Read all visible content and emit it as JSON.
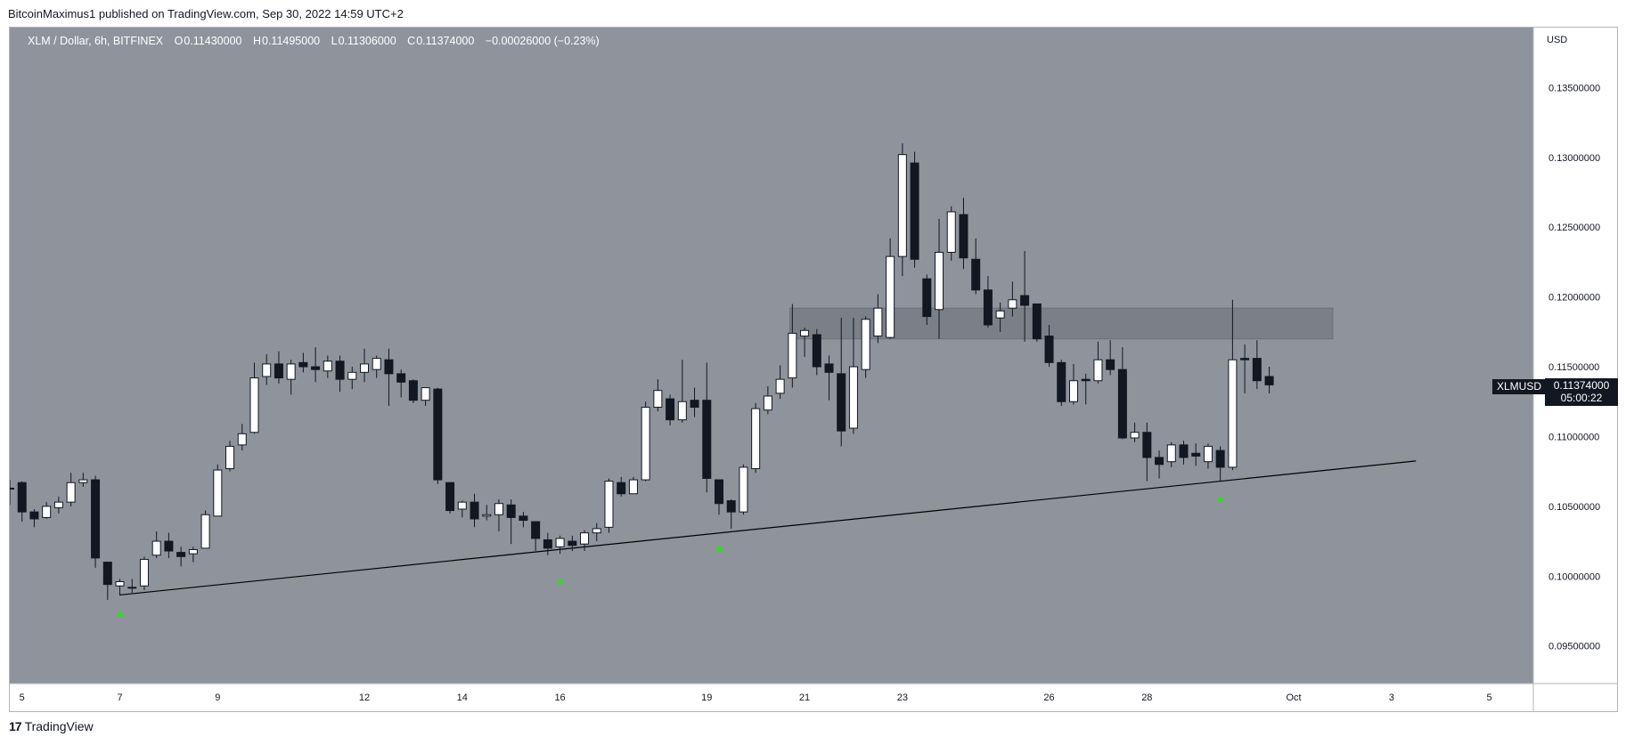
{
  "publisher": "BitcoinMaximus1 published on TradingView.com, Sep 30, 2022 14:59 UTC+2",
  "legend": {
    "symbol": "XLM / Dollar, 6h, BITFINEX",
    "open_label": "O",
    "open": "0.11430000",
    "high_label": "H",
    "high": "0.11495000",
    "low_label": "L",
    "low": "0.11306000",
    "close_label": "C",
    "close": "0.11374000",
    "change": "−0.00026000 (−0.23%)"
  },
  "currency": "USD",
  "symbol_tag": "XLMUSD",
  "last_price": "0.11374000",
  "countdown": "05:00:22",
  "footer": {
    "brand": "TradingView",
    "logo": "17"
  },
  "colors": {
    "background": "#8f939c",
    "up_candle": "#ffffff",
    "down_candle": "#131722",
    "zone": "#7b7f87",
    "marker": "#38d62a"
  },
  "chart_data": {
    "type": "candlestick",
    "title": "XLM / Dollar, 6h, BITFINEX",
    "y_axis": {
      "label": "USD",
      "ticks": [
        "0.13500000",
        "0.13000000",
        "0.12500000",
        "0.12000000",
        "0.11500000",
        "0.11000000",
        "0.10500000",
        "0.10000000",
        "0.09500000"
      ],
      "range": [
        0.0923,
        0.1393
      ]
    },
    "x_axis": {
      "ticks": [
        "5",
        "7",
        "9",
        "12",
        "14",
        "16",
        "19",
        "21",
        "23",
        "26",
        "28",
        "Oct",
        "3",
        "5"
      ],
      "range_days": [
        4.75,
        35.9
      ]
    },
    "candles": [
      {
        "d": 4.75,
        "o": 0.1063,
        "h": 0.1069,
        "l": 0.1051,
        "c": 0.1063
      },
      {
        "d": 5.0,
        "o": 0.1067,
        "h": 0.1068,
        "l": 0.1039,
        "c": 0.1046
      },
      {
        "d": 5.25,
        "o": 0.1046,
        "h": 0.1048,
        "l": 0.1035,
        "c": 0.1041
      },
      {
        "d": 5.5,
        "o": 0.1042,
        "h": 0.1053,
        "l": 0.1041,
        "c": 0.105
      },
      {
        "d": 5.75,
        "o": 0.1049,
        "h": 0.1057,
        "l": 0.1045,
        "c": 0.1053
      },
      {
        "d": 6.0,
        "o": 0.1053,
        "h": 0.1074,
        "l": 0.105,
        "c": 0.1067
      },
      {
        "d": 6.25,
        "o": 0.1067,
        "h": 0.1074,
        "l": 0.1064,
        "c": 0.1069
      },
      {
        "d": 6.5,
        "o": 0.1069,
        "h": 0.1072,
        "l": 0.1006,
        "c": 0.1013
      },
      {
        "d": 6.75,
        "o": 0.101,
        "h": 0.101,
        "l": 0.0983,
        "c": 0.0994
      },
      {
        "d": 7.0,
        "o": 0.0993,
        "h": 0.0998,
        "l": 0.0986,
        "c": 0.0996
      },
      {
        "d": 7.25,
        "o": 0.0992,
        "h": 0.0998,
        "l": 0.0988,
        "c": 0.0992
      },
      {
        "d": 7.5,
        "o": 0.0993,
        "h": 0.1014,
        "l": 0.099,
        "c": 0.1012
      },
      {
        "d": 7.75,
        "o": 0.1015,
        "h": 0.1032,
        "l": 0.1013,
        "c": 0.1025
      },
      {
        "d": 8.0,
        "o": 0.1025,
        "h": 0.1031,
        "l": 0.1013,
        "c": 0.1018
      },
      {
        "d": 8.25,
        "o": 0.1017,
        "h": 0.1021,
        "l": 0.1007,
        "c": 0.1014
      },
      {
        "d": 8.5,
        "o": 0.1016,
        "h": 0.1021,
        "l": 0.101,
        "c": 0.1019
      },
      {
        "d": 8.75,
        "o": 0.102,
        "h": 0.1047,
        "l": 0.102,
        "c": 0.1044
      },
      {
        "d": 9.0,
        "o": 0.1043,
        "h": 0.108,
        "l": 0.1043,
        "c": 0.1076
      },
      {
        "d": 9.25,
        "o": 0.1077,
        "h": 0.1097,
        "l": 0.1075,
        "c": 0.1093
      },
      {
        "d": 9.5,
        "o": 0.1094,
        "h": 0.1109,
        "l": 0.109,
        "c": 0.1102
      },
      {
        "d": 9.75,
        "o": 0.1103,
        "h": 0.1153,
        "l": 0.1102,
        "c": 0.1142
      },
      {
        "d": 10.0,
        "o": 0.1143,
        "h": 0.1159,
        "l": 0.1137,
        "c": 0.1152
      },
      {
        "d": 10.25,
        "o": 0.1152,
        "h": 0.1161,
        "l": 0.1138,
        "c": 0.1142
      },
      {
        "d": 10.5,
        "o": 0.1141,
        "h": 0.1155,
        "l": 0.113,
        "c": 0.1152
      },
      {
        "d": 10.75,
        "o": 0.1153,
        "h": 0.116,
        "l": 0.1146,
        "c": 0.115
      },
      {
        "d": 11.0,
        "o": 0.115,
        "h": 0.1164,
        "l": 0.1139,
        "c": 0.1148
      },
      {
        "d": 11.25,
        "o": 0.1147,
        "h": 0.1158,
        "l": 0.1142,
        "c": 0.1154
      },
      {
        "d": 11.5,
        "o": 0.1154,
        "h": 0.1158,
        "l": 0.1132,
        "c": 0.1141
      },
      {
        "d": 11.75,
        "o": 0.1141,
        "h": 0.115,
        "l": 0.1134,
        "c": 0.1146
      },
      {
        "d": 12.0,
        "o": 0.1146,
        "h": 0.1163,
        "l": 0.1139,
        "c": 0.1152
      },
      {
        "d": 12.25,
        "o": 0.1148,
        "h": 0.1158,
        "l": 0.1142,
        "c": 0.1156
      },
      {
        "d": 12.5,
        "o": 0.1155,
        "h": 0.1163,
        "l": 0.1122,
        "c": 0.1145
      },
      {
        "d": 12.75,
        "o": 0.1145,
        "h": 0.1148,
        "l": 0.1128,
        "c": 0.1139
      },
      {
        "d": 13.0,
        "o": 0.114,
        "h": 0.1141,
        "l": 0.1124,
        "c": 0.1126
      },
      {
        "d": 13.25,
        "o": 0.1126,
        "h": 0.1135,
        "l": 0.1122,
        "c": 0.1135
      },
      {
        "d": 13.5,
        "o": 0.1134,
        "h": 0.1135,
        "l": 0.1066,
        "c": 0.1069
      },
      {
        "d": 13.75,
        "o": 0.1067,
        "h": 0.1067,
        "l": 0.1045,
        "c": 0.1047
      },
      {
        "d": 14.0,
        "o": 0.1048,
        "h": 0.1054,
        "l": 0.1042,
        "c": 0.1053
      },
      {
        "d": 14.25,
        "o": 0.1053,
        "h": 0.1059,
        "l": 0.1035,
        "c": 0.1041
      },
      {
        "d": 14.5,
        "o": 0.1043,
        "h": 0.1051,
        "l": 0.104,
        "c": 0.1044
      },
      {
        "d": 14.75,
        "o": 0.1044,
        "h": 0.1055,
        "l": 0.1032,
        "c": 0.1052
      },
      {
        "d": 15.0,
        "o": 0.1051,
        "h": 0.1055,
        "l": 0.1023,
        "c": 0.1042
      },
      {
        "d": 15.25,
        "o": 0.1043,
        "h": 0.1046,
        "l": 0.1035,
        "c": 0.104
      },
      {
        "d": 15.5,
        "o": 0.1039,
        "h": 0.1039,
        "l": 0.1018,
        "c": 0.1027
      },
      {
        "d": 15.75,
        "o": 0.1026,
        "h": 0.1031,
        "l": 0.1015,
        "c": 0.102
      },
      {
        "d": 16.0,
        "o": 0.1021,
        "h": 0.1029,
        "l": 0.1016,
        "c": 0.1027
      },
      {
        "d": 16.25,
        "o": 0.1025,
        "h": 0.1029,
        "l": 0.1018,
        "c": 0.1022
      },
      {
        "d": 16.5,
        "o": 0.1023,
        "h": 0.1033,
        "l": 0.1018,
        "c": 0.1031
      },
      {
        "d": 16.75,
        "o": 0.1031,
        "h": 0.1038,
        "l": 0.1025,
        "c": 0.1034
      },
      {
        "d": 17.0,
        "o": 0.1035,
        "h": 0.107,
        "l": 0.1031,
        "c": 0.1068
      },
      {
        "d": 17.25,
        "o": 0.1067,
        "h": 0.1071,
        "l": 0.1057,
        "c": 0.1059
      },
      {
        "d": 17.5,
        "o": 0.1059,
        "h": 0.1071,
        "l": 0.1059,
        "c": 0.1069
      },
      {
        "d": 17.75,
        "o": 0.1069,
        "h": 0.1125,
        "l": 0.1068,
        "c": 0.1121
      },
      {
        "d": 18.0,
        "o": 0.1121,
        "h": 0.1141,
        "l": 0.1118,
        "c": 0.1133
      },
      {
        "d": 18.25,
        "o": 0.1127,
        "h": 0.113,
        "l": 0.1108,
        "c": 0.1112
      },
      {
        "d": 18.5,
        "o": 0.1112,
        "h": 0.1155,
        "l": 0.111,
        "c": 0.1125
      },
      {
        "d": 18.75,
        "o": 0.1126,
        "h": 0.1135,
        "l": 0.1114,
        "c": 0.1121
      },
      {
        "d": 19.0,
        "o": 0.1126,
        "h": 0.1153,
        "l": 0.106,
        "c": 0.107
      },
      {
        "d": 19.25,
        "o": 0.1069,
        "h": 0.1069,
        "l": 0.1044,
        "c": 0.1052
      },
      {
        "d": 19.5,
        "o": 0.1054,
        "h": 0.1055,
        "l": 0.1034,
        "c": 0.1046
      },
      {
        "d": 19.75,
        "o": 0.1046,
        "h": 0.108,
        "l": 0.1044,
        "c": 0.1078
      },
      {
        "d": 20.0,
        "o": 0.1077,
        "h": 0.1124,
        "l": 0.1074,
        "c": 0.112
      },
      {
        "d": 20.25,
        "o": 0.1119,
        "h": 0.1136,
        "l": 0.1116,
        "c": 0.1129
      },
      {
        "d": 20.5,
        "o": 0.1131,
        "h": 0.1151,
        "l": 0.1127,
        "c": 0.1141
      },
      {
        "d": 20.75,
        "o": 0.1142,
        "h": 0.1195,
        "l": 0.1135,
        "c": 0.1174
      },
      {
        "d": 21.0,
        "o": 0.1172,
        "h": 0.1178,
        "l": 0.1157,
        "c": 0.1176
      },
      {
        "d": 21.25,
        "o": 0.1173,
        "h": 0.1177,
        "l": 0.1144,
        "c": 0.115
      },
      {
        "d": 21.5,
        "o": 0.1152,
        "h": 0.1158,
        "l": 0.1126,
        "c": 0.1146
      },
      {
        "d": 21.75,
        "o": 0.1145,
        "h": 0.1185,
        "l": 0.1093,
        "c": 0.1104
      },
      {
        "d": 22.0,
        "o": 0.1106,
        "h": 0.1185,
        "l": 0.1102,
        "c": 0.115
      },
      {
        "d": 22.25,
        "o": 0.1148,
        "h": 0.1186,
        "l": 0.1142,
        "c": 0.1184
      },
      {
        "d": 22.5,
        "o": 0.1172,
        "h": 0.1202,
        "l": 0.1167,
        "c": 0.1192
      },
      {
        "d": 22.75,
        "o": 0.1171,
        "h": 0.1242,
        "l": 0.117,
        "c": 0.1229
      },
      {
        "d": 23.0,
        "o": 0.1229,
        "h": 0.131,
        "l": 0.1215,
        "c": 0.1302
      },
      {
        "d": 23.25,
        "o": 0.1296,
        "h": 0.1304,
        "l": 0.1221,
        "c": 0.1227
      },
      {
        "d": 23.5,
        "o": 0.1213,
        "h": 0.1216,
        "l": 0.118,
        "c": 0.1186
      },
      {
        "d": 23.75,
        "o": 0.1191,
        "h": 0.1256,
        "l": 0.117,
        "c": 0.1232
      },
      {
        "d": 24.0,
        "o": 0.1232,
        "h": 0.1265,
        "l": 0.1226,
        "c": 0.1261
      },
      {
        "d": 24.25,
        "o": 0.1259,
        "h": 0.1271,
        "l": 0.122,
        "c": 0.1228
      },
      {
        "d": 24.5,
        "o": 0.1227,
        "h": 0.1242,
        "l": 0.1202,
        "c": 0.1205
      },
      {
        "d": 24.75,
        "o": 0.1205,
        "h": 0.1215,
        "l": 0.1178,
        "c": 0.118
      },
      {
        "d": 25.0,
        "o": 0.1185,
        "h": 0.1196,
        "l": 0.1175,
        "c": 0.119
      },
      {
        "d": 25.25,
        "o": 0.1192,
        "h": 0.1211,
        "l": 0.1186,
        "c": 0.1198
      },
      {
        "d": 25.5,
        "o": 0.1201,
        "h": 0.1233,
        "l": 0.1168,
        "c": 0.1194
      },
      {
        "d": 25.75,
        "o": 0.1195,
        "h": 0.1195,
        "l": 0.1168,
        "c": 0.117
      },
      {
        "d": 26.0,
        "o": 0.1172,
        "h": 0.118,
        "l": 0.115,
        "c": 0.1153
      },
      {
        "d": 26.25,
        "o": 0.1153,
        "h": 0.1155,
        "l": 0.1122,
        "c": 0.1125
      },
      {
        "d": 26.5,
        "o": 0.1125,
        "h": 0.1152,
        "l": 0.1123,
        "c": 0.114
      },
      {
        "d": 26.75,
        "o": 0.1141,
        "h": 0.1145,
        "l": 0.1123,
        "c": 0.114
      },
      {
        "d": 27.0,
        "o": 0.114,
        "h": 0.1168,
        "l": 0.1138,
        "c": 0.1155
      },
      {
        "d": 27.25,
        "o": 0.1155,
        "h": 0.1169,
        "l": 0.1144,
        "c": 0.1148
      },
      {
        "d": 27.5,
        "o": 0.1148,
        "h": 0.1164,
        "l": 0.1098,
        "c": 0.1099
      },
      {
        "d": 27.75,
        "o": 0.1099,
        "h": 0.111,
        "l": 0.1096,
        "c": 0.1103
      },
      {
        "d": 28.0,
        "o": 0.1103,
        "h": 0.111,
        "l": 0.1068,
        "c": 0.1085
      },
      {
        "d": 28.25,
        "o": 0.1085,
        "h": 0.109,
        "l": 0.107,
        "c": 0.108
      },
      {
        "d": 28.5,
        "o": 0.1082,
        "h": 0.1096,
        "l": 0.1078,
        "c": 0.1094
      },
      {
        "d": 28.75,
        "o": 0.1094,
        "h": 0.1097,
        "l": 0.108,
        "c": 0.1085
      },
      {
        "d": 29.0,
        "o": 0.1088,
        "h": 0.1095,
        "l": 0.1079,
        "c": 0.1086
      },
      {
        "d": 29.25,
        "o": 0.1082,
        "h": 0.1095,
        "l": 0.1077,
        "c": 0.1093
      },
      {
        "d": 29.5,
        "o": 0.109,
        "h": 0.1093,
        "l": 0.1068,
        "c": 0.1078
      },
      {
        "d": 29.75,
        "o": 0.1078,
        "h": 0.1198,
        "l": 0.1076,
        "c": 0.1155
      },
      {
        "d": 30.0,
        "o": 0.1156,
        "h": 0.1166,
        "l": 0.1131,
        "c": 0.1155
      },
      {
        "d": 30.25,
        "o": 0.1156,
        "h": 0.1169,
        "l": 0.1134,
        "c": 0.114
      },
      {
        "d": 30.5,
        "o": 0.1143,
        "h": 0.115,
        "l": 0.1131,
        "c": 0.1137
      }
    ],
    "resistance_zone": {
      "from": 0.117,
      "to": 0.1192,
      "start_day": 20.7,
      "end_day": 31.8
    },
    "support_line": {
      "start": {
        "d": 7.0,
        "price": 0.09865
      },
      "end": {
        "d": 33.5,
        "price": 0.10825
      }
    },
    "markers": [
      {
        "d": 7.0,
        "price": 0.0973
      },
      {
        "d": 16.0,
        "price": 0.0996
      },
      {
        "d": 19.25,
        "price": 0.102
      },
      {
        "d": 29.5,
        "price": 0.1055
      }
    ]
  }
}
